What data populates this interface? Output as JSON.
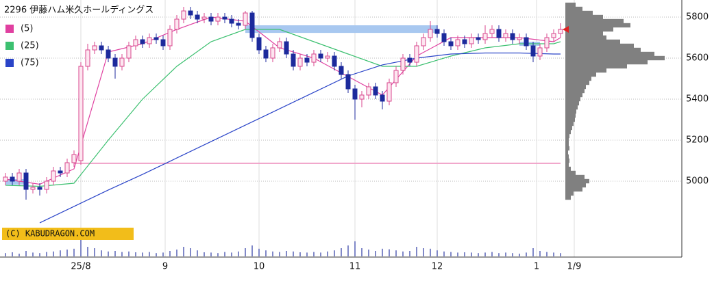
{
  "chart_data": {
    "type": "candlestick",
    "title": "2296 伊藤ハム米久ホールディングス",
    "copyright": "(C) KABUDRAGON.COM",
    "xlim": [
      -0.8,
      98.7
    ],
    "ylim": [
      4630,
      5880
    ],
    "yticks": [
      5000,
      5200,
      5400,
      5600,
      5800
    ],
    "xticks": [
      {
        "value": 11,
        "label": "25/8"
      },
      {
        "value": 23.3,
        "label": "9"
      },
      {
        "value": 37,
        "label": "10"
      },
      {
        "value": 51,
        "label": "11"
      },
      {
        "value": 63,
        "label": "12"
      },
      {
        "value": 77.5,
        "label": "1"
      },
      {
        "value": 83,
        "label": "1/9"
      }
    ],
    "grid": true,
    "up_color": "#d8468c",
    "down_color": "#1c2a9c",
    "open": [
      5000,
      5020,
      5000,
      5040,
      4960,
      4970,
      4960,
      5000,
      5050,
      5040,
      5090,
      5100,
      5560,
      5640,
      5660,
      5640,
      5600,
      5560,
      5600,
      5660,
      5690,
      5670,
      5700,
      5690,
      5660,
      5740,
      5790,
      5830,
      5810,
      5790,
      5800,
      5780,
      5800,
      5790,
      5770,
      5760,
      5820,
      5700,
      5640,
      5600,
      5650,
      5680,
      5620,
      5560,
      5600,
      5580,
      5620,
      5600,
      5610,
      5560,
      5520,
      5450,
      5400,
      5420,
      5460,
      5420,
      5390,
      5480,
      5540,
      5600,
      5580,
      5660,
      5700,
      5740,
      5720,
      5680,
      5660,
      5690,
      5670,
      5700,
      5690,
      5720,
      5740,
      5700,
      5720,
      5690,
      5700,
      5660,
      5610,
      5650,
      5700,
      5720
    ],
    "high": [
      5040,
      5040,
      5060,
      5060,
      4990,
      4990,
      5020,
      5070,
      5070,
      5110,
      5150,
      5580,
      5670,
      5680,
      5680,
      5660,
      5620,
      5620,
      5680,
      5710,
      5710,
      5720,
      5720,
      5710,
      5760,
      5810,
      5850,
      5850,
      5830,
      5820,
      5820,
      5820,
      5820,
      5810,
      5790,
      5830,
      5830,
      5720,
      5660,
      5670,
      5700,
      5700,
      5640,
      5620,
      5620,
      5640,
      5640,
      5630,
      5630,
      5580,
      5540,
      5470,
      5440,
      5480,
      5480,
      5440,
      5500,
      5560,
      5620,
      5620,
      5680,
      5720,
      5780,
      5760,
      5740,
      5700,
      5710,
      5710,
      5720,
      5720,
      5760,
      5760,
      5760,
      5740,
      5740,
      5720,
      5720,
      5680,
      5670,
      5720,
      5740,
      5770
    ],
    "low": [
      4980,
      4980,
      4980,
      4910,
      4940,
      4930,
      4940,
      4980,
      5020,
      5020,
      5070,
      5080,
      5540,
      5620,
      5620,
      5580,
      5500,
      5540,
      5580,
      5640,
      5650,
      5650,
      5670,
      5640,
      5640,
      5720,
      5770,
      5790,
      5770,
      5770,
      5760,
      5760,
      5770,
      5750,
      5740,
      5740,
      5680,
      5620,
      5580,
      5580,
      5630,
      5600,
      5540,
      5540,
      5560,
      5560,
      5580,
      5580,
      5540,
      5500,
      5430,
      5300,
      5360,
      5400,
      5400,
      5350,
      5370,
      5460,
      5520,
      5560,
      5560,
      5640,
      5680,
      5700,
      5660,
      5640,
      5640,
      5650,
      5650,
      5670,
      5670,
      5700,
      5680,
      5680,
      5670,
      5670,
      5640,
      5580,
      5590,
      5630,
      5680,
      5700
    ],
    "close": [
      5020,
      5000,
      5040,
      4960,
      4970,
      4960,
      5000,
      5050,
      5040,
      5090,
      5130,
      5560,
      5640,
      5660,
      5640,
      5600,
      5560,
      5600,
      5660,
      5690,
      5670,
      5700,
      5690,
      5660,
      5740,
      5790,
      5830,
      5810,
      5790,
      5800,
      5780,
      5800,
      5790,
      5770,
      5760,
      5820,
      5700,
      5640,
      5600,
      5650,
      5680,
      5620,
      5560,
      5600,
      5580,
      5620,
      5600,
      5610,
      5560,
      5520,
      5450,
      5400,
      5420,
      5460,
      5420,
      5390,
      5480,
      5540,
      5600,
      5580,
      5660,
      5700,
      5740,
      5720,
      5680,
      5660,
      5690,
      5670,
      5700,
      5690,
      5720,
      5740,
      5700,
      5720,
      5690,
      5700,
      5660,
      5610,
      5650,
      5700,
      5720,
      5740
    ],
    "ma_x": [
      0,
      5,
      10,
      15,
      20,
      25,
      30,
      35,
      40,
      45,
      50,
      55,
      60,
      65,
      70,
      75,
      80,
      81
    ],
    "series": [
      {
        "name": "(5)",
        "color": "#e040a0",
        "values": [
          5010,
          4985,
          5060,
          5630,
          5670,
          5740,
          5800,
          5780,
          5650,
          5600,
          5510,
          5420,
          5610,
          5700,
          5700,
          5700,
          5680,
          5700
        ]
      },
      {
        "name": "(25)",
        "color": "#3cc070",
        "values": [
          4980,
          4975,
          4990,
          5200,
          5400,
          5560,
          5680,
          5740,
          5740,
          5680,
          5620,
          5560,
          5560,
          5610,
          5650,
          5670,
          5670,
          5680
        ]
      },
      {
        "name": "(75)",
        "color": "#2a44c8",
        "values": [
          null,
          4797,
          4877,
          4957,
          5033,
          5113,
          5193,
          5273,
          5353,
          5433,
          5513,
          5567,
          5600,
          5620,
          5625,
          5625,
          5620,
          5620
        ]
      }
    ],
    "zones": [
      {
        "color": "#a8c8f0",
        "x": [
          35,
          63
        ],
        "range": [
          5723,
          5760
        ]
      },
      {
        "color": "#a8c8f0",
        "x": [
          0,
          3
        ],
        "range": [
          4983,
          5010
        ]
      },
      {
        "color": "#a8c8f0",
        "x": [
          75,
          78
        ],
        "range": [
          5660,
          5680
        ]
      }
    ],
    "support": {
      "color": "#f0a0c8",
      "value": 5087,
      "x": [
        10,
        81
      ]
    },
    "volume": [
      12,
      15,
      10,
      20,
      14,
      12,
      16,
      18,
      22,
      25,
      28,
      75,
      35,
      30,
      22,
      18,
      20,
      16,
      18,
      15,
      14,
      16,
      12,
      14,
      20,
      25,
      35,
      30,
      22,
      15,
      14,
      12,
      16,
      14,
      18,
      30,
      40,
      28,
      22,
      18,
      16,
      20,
      18,
      15,
      14,
      16,
      14,
      18,
      22,
      30,
      40,
      55,
      30,
      25,
      20,
      28,
      26,
      22,
      18,
      20,
      35,
      30,
      28,
      22,
      18,
      16,
      14,
      15,
      14,
      12,
      14,
      16,
      12,
      14,
      12,
      10,
      14,
      30,
      20,
      16,
      14,
      12
    ],
    "volume_color": "#8088c8",
    "profile_levels": [
      4920,
      4940,
      4960,
      4980,
      5000,
      5020,
      5040,
      5060,
      5080,
      5100,
      5120,
      5140,
      5160,
      5180,
      5200,
      5220,
      5240,
      5260,
      5280,
      5300,
      5320,
      5340,
      5360,
      5380,
      5400,
      5420,
      5440,
      5460,
      5480,
      5500,
      5520,
      5540,
      5560,
      5580,
      5600,
      5620,
      5640,
      5660,
      5680,
      5700,
      5720,
      5740,
      5760,
      5780,
      5800,
      5820,
      5840,
      5860
    ],
    "profile_values": [
      8,
      12,
      25,
      30,
      35,
      28,
      15,
      8,
      5,
      6,
      5,
      4,
      6,
      5,
      5,
      6,
      8,
      10,
      12,
      14,
      15,
      16,
      18,
      20,
      22,
      25,
      28,
      30,
      35,
      38,
      45,
      60,
      90,
      120,
      145,
      130,
      110,
      100,
      80,
      60,
      55,
      70,
      95,
      85,
      55,
      40,
      25,
      15
    ],
    "profile_color": "#808080"
  }
}
